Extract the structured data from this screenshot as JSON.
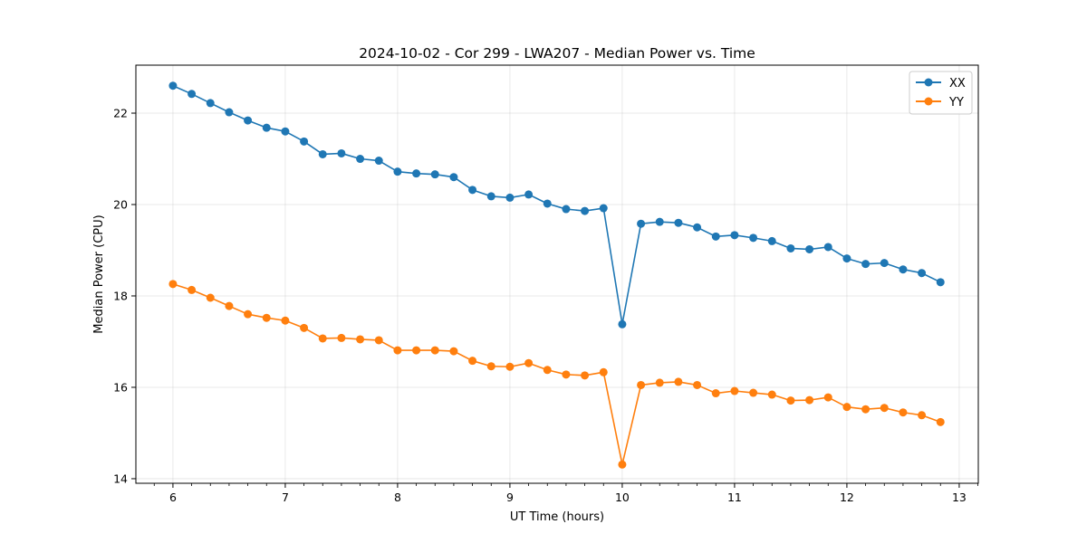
{
  "chart_data": {
    "type": "line",
    "title": "2024-10-02 - Cor 299 - LWA207 - Median Power vs. Time",
    "xlabel": "UT Time (hours)",
    "ylabel": "Median Power (CPU)",
    "xlim": [
      5.67,
      13.17
    ],
    "ylim": [
      13.9,
      23.05
    ],
    "xticks": [
      6,
      7,
      8,
      9,
      10,
      11,
      12,
      13
    ],
    "yticks": [
      14,
      16,
      18,
      20,
      22
    ],
    "grid": true,
    "legend_position": "top-right",
    "x": [
      6.0,
      6.1667,
      6.3333,
      6.5,
      6.6667,
      6.8333,
      7.0,
      7.1667,
      7.3333,
      7.5,
      7.6667,
      7.8333,
      8.0,
      8.1667,
      8.3333,
      8.5,
      8.6667,
      8.8333,
      9.0,
      9.1667,
      9.3333,
      9.5,
      9.6667,
      9.8333,
      10.0,
      10.1667,
      10.3333,
      10.5,
      10.6667,
      10.8333,
      11.0,
      11.1667,
      11.3333,
      11.5,
      11.6667,
      11.8333,
      12.0,
      12.1667,
      12.3333,
      12.5,
      12.6667,
      12.8333
    ],
    "series": [
      {
        "name": "XX",
        "color": "#1f77b4",
        "values": [
          22.6,
          22.42,
          22.22,
          22.02,
          21.84,
          21.68,
          21.6,
          21.38,
          21.1,
          21.12,
          21.0,
          20.96,
          20.72,
          20.68,
          20.66,
          20.6,
          20.32,
          20.18,
          20.15,
          20.22,
          20.02,
          19.9,
          19.86,
          19.92,
          17.38,
          19.58,
          19.62,
          19.6,
          19.5,
          19.3,
          19.33,
          19.27,
          19.2,
          19.04,
          19.02,
          19.07,
          18.82,
          18.7,
          18.72,
          18.58,
          18.5,
          18.3
        ]
      },
      {
        "name": "YY",
        "color": "#ff7f0e",
        "values": [
          18.26,
          18.13,
          17.96,
          17.78,
          17.6,
          17.52,
          17.46,
          17.3,
          17.07,
          17.08,
          17.05,
          17.03,
          16.81,
          16.81,
          16.81,
          16.79,
          16.58,
          16.46,
          16.45,
          16.53,
          16.38,
          16.28,
          16.26,
          16.33,
          14.31,
          16.05,
          16.1,
          16.12,
          16.05,
          15.87,
          15.92,
          15.88,
          15.84,
          15.71,
          15.72,
          15.78,
          15.57,
          15.52,
          15.55,
          15.45,
          15.39,
          15.24
        ]
      }
    ]
  }
}
